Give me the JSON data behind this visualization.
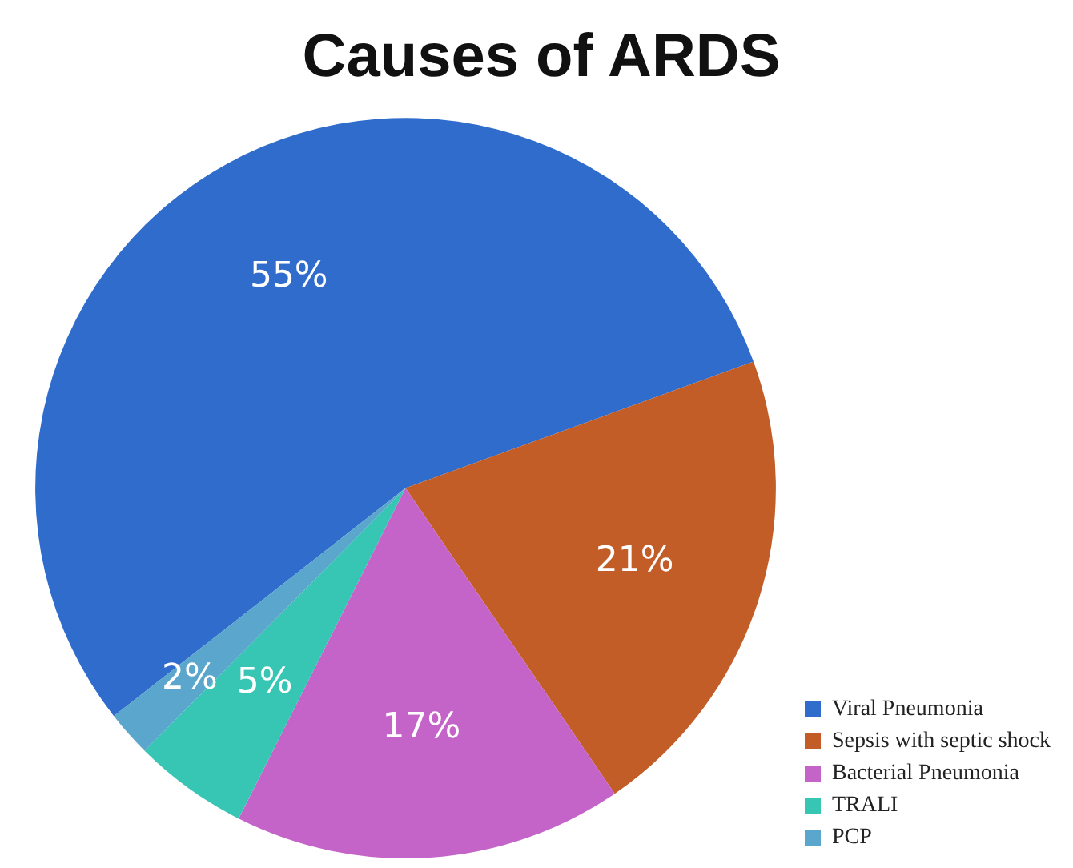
{
  "chart_data": {
    "type": "pie",
    "title": "Causes of ARDS",
    "categories": [
      "Viral Pneumonia",
      "Sepsis with septic shock",
      "Bacterial Pneumonia",
      "TRALI",
      "PCP"
    ],
    "values": [
      55,
      21,
      17,
      5,
      2
    ],
    "colors": [
      "#2f6ccc",
      "#c35d27",
      "#c464c8",
      "#38c6b4",
      "#5aa6cc"
    ],
    "value_labels": [
      "55%",
      "21%",
      "17%",
      "5%",
      "2%"
    ],
    "legend": "bottom right"
  }
}
